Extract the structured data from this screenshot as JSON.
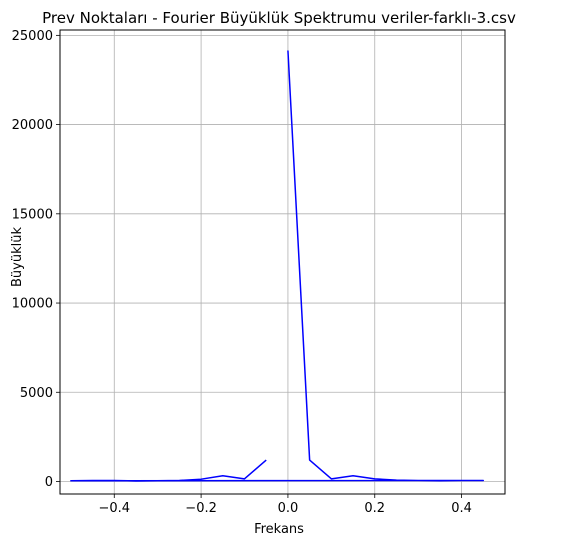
{
  "chart_data": {
    "type": "line",
    "title": "Prev Noktaları - Fourier Büyüklük Spektrumu veriler-farklı-3.csv",
    "xlabel": "Frekans",
    "ylabel": "Büyüklük",
    "xlim": [
      -0.525,
      0.5
    ],
    "ylim": [
      -700,
      25300
    ],
    "grid": true,
    "x_ticks": [
      -0.4,
      -0.2,
      0.0,
      0.2,
      0.4
    ],
    "x_tick_labels": [
      "−0.4",
      "−0.2",
      "0.0",
      "0.2",
      "0.4"
    ],
    "y_ticks": [
      0,
      5000,
      10000,
      15000,
      20000,
      25000
    ],
    "y_tick_labels": [
      "0",
      "5000",
      "10000",
      "15000",
      "20000",
      "25000"
    ],
    "series": [
      {
        "color": "#0000ff",
        "x": [
          0.0,
          0.05,
          0.1,
          0.15,
          0.2,
          0.25,
          0.3,
          0.35,
          0.4,
          0.45,
          -0.5,
          -0.45,
          -0.4,
          -0.35,
          -0.3,
          -0.25,
          -0.2,
          -0.15,
          -0.1,
          -0.05
        ],
        "y": [
          24150,
          1200,
          150,
          320,
          150,
          80,
          60,
          40,
          60,
          60,
          40,
          60,
          60,
          30,
          40,
          60,
          130,
          320,
          150,
          1200
        ]
      }
    ]
  }
}
